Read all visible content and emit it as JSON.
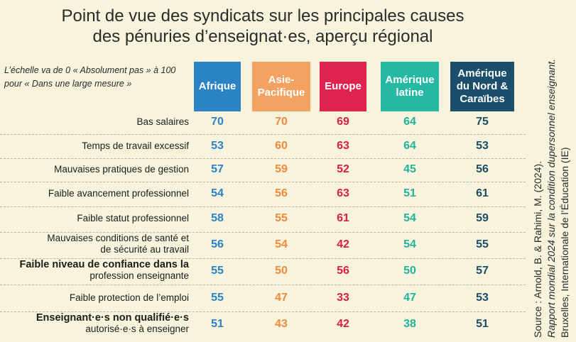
{
  "title_line1": "Point de vue des syndicats sur les principales causes",
  "title_line2": "des pénuries d’enseignat·es, aperçu régional",
  "scale_note": "L’échelle va de 0 « Absolument pas » à 100 pour « Dans une large mesure »",
  "source_line1": "Source : Arnold, B. & Rahimi, M. (2024).",
  "source_line2": "Rapport mondial 2024 sur la condition dupersonnel enseignant.",
  "source_line3": "Bruxelles, Internationale de l’Éducation (IE)",
  "colors": {
    "background": "#f7f3dc",
    "Afrique": "#2b83c6",
    "Asie-Pacifique": "#f4a261",
    "Europe": "#e0234e",
    "Amérique latine": "#25b8a3",
    "Amérique du Nord & Caraïbes": "#1a4e6b"
  },
  "chart_data": {
    "type": "table",
    "columns": [
      {
        "label": "Afrique",
        "color": "#2b83c6",
        "text_color": "#2b83c6"
      },
      {
        "label": "Asie-Pacifique",
        "color": "#f4a261",
        "text_color": "#f08a3c"
      },
      {
        "label": "Europe",
        "color": "#e0234e",
        "text_color": "#d8203f"
      },
      {
        "label": "Amérique latine",
        "color": "#25b8a3",
        "text_color": "#22b39c"
      },
      {
        "label": "Amérique du Nord & Caraïbes",
        "color": "#1a4e6b",
        "text_color": "#1a4e6b"
      }
    ],
    "rows": [
      {
        "label": "Bas salaires",
        "label_bold": "",
        "values": [
          70,
          70,
          69,
          64,
          75
        ]
      },
      {
        "label": "Temps de travail excessif",
        "label_bold": "",
        "values": [
          53,
          60,
          63,
          64,
          53
        ]
      },
      {
        "label": "Mauvaises pratiques de gestion",
        "label_bold": "",
        "values": [
          57,
          59,
          52,
          45,
          56
        ]
      },
      {
        "label": "Faible avancement professionnel",
        "label_bold": "",
        "values": [
          54,
          56,
          63,
          51,
          61
        ]
      },
      {
        "label": "Faible statut professionnel",
        "label_bold": "",
        "values": [
          58,
          55,
          61,
          54,
          59
        ]
      },
      {
        "label": "Mauvaises conditions de santé et de sécurité au travail",
        "label_bold": "",
        "values": [
          56,
          54,
          42,
          54,
          55
        ]
      },
      {
        "label": "profession enseignante",
        "label_bold": "Faible niveau de confiance dans la",
        "values": [
          55,
          50,
          56,
          50,
          57
        ]
      },
      {
        "label": "Faible protection de l’emploi",
        "label_bold": "",
        "values": [
          55,
          47,
          33,
          47,
          53
        ]
      },
      {
        "label": "autorisé·e·s à enseigner",
        "label_bold": "Enseignant·e·s non qualifié·e·s",
        "values": [
          51,
          43,
          42,
          38,
          51
        ]
      }
    ]
  }
}
